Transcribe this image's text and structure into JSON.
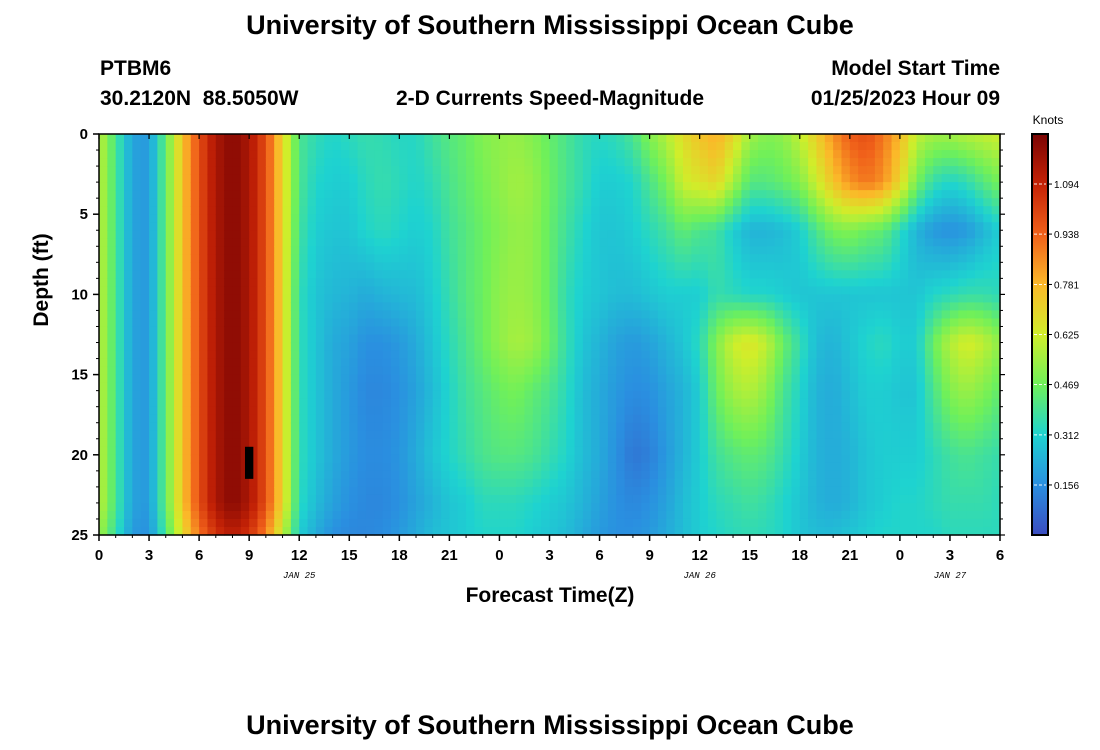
{
  "page": {
    "title": "University of Southern Mississippi Ocean Cube",
    "station_id": "PTBM6",
    "station_coords": "30.2120N  88.5050W",
    "plot_title": "2-D Currents Speed-Magnitude",
    "model_start_label": "Model Start Time",
    "model_start_value": "01/25/2023 Hour 09",
    "footer_title": "University of Southern Mississippi Ocean Cube"
  },
  "chart_data": {
    "type": "heatmap",
    "title": "2-D Currents Speed-Magnitude",
    "xlabel": "Forecast Time(Z)",
    "ylabel": "Depth (ft)",
    "x_ticks": [
      "0",
      "3",
      "6",
      "9",
      "12",
      "15",
      "18",
      "21",
      "0",
      "3",
      "6",
      "9",
      "12",
      "15",
      "18",
      "21",
      "0",
      "3",
      "6"
    ],
    "x_hours": [
      0,
      3,
      6,
      9,
      12,
      15,
      18,
      21,
      24,
      27,
      30,
      33,
      36,
      39,
      42,
      45,
      48,
      51,
      54
    ],
    "date_labels": [
      {
        "label": "JAN 25",
        "hour": 12
      },
      {
        "label": "JAN 26",
        "hour": 36
      },
      {
        "label": "JAN 27",
        "hour": 51
      }
    ],
    "xlim": [
      0,
      54
    ],
    "y_ticks": [
      "0",
      "5",
      "10",
      "15",
      "20",
      "25"
    ],
    "y_values": [
      0,
      5,
      10,
      15,
      20,
      25
    ],
    "ylim": [
      0,
      25
    ],
    "y_inverted": true,
    "colorbar": {
      "unit": "Knots",
      "labels": [
        "0.156",
        "0.312",
        "0.469",
        "0.625",
        "0.781",
        "0.938",
        "1.094"
      ],
      "values": [
        0.156,
        0.312,
        0.469,
        0.625,
        0.781,
        0.938,
        1.094
      ],
      "range": [
        0.0,
        1.25
      ],
      "colormap": [
        "#3b4cc0",
        "#2a8fe0",
        "#1ed3d0",
        "#6ff05a",
        "#d0ee2a",
        "#fbb829",
        "#f0601a",
        "#c42206",
        "#7a0403"
      ]
    },
    "speed_field_knots": {
      "depths_ft": [
        0,
        3,
        6,
        10,
        13,
        16,
        20,
        23,
        25
      ],
      "hours": [
        0,
        1,
        2,
        3,
        4,
        5,
        6,
        7,
        8,
        9,
        10,
        11,
        12,
        13,
        14,
        15,
        16,
        17,
        18,
        19,
        20,
        21,
        22,
        23,
        24,
        25,
        26,
        27,
        28,
        29,
        30,
        31,
        32,
        33,
        34,
        35,
        36,
        37,
        38,
        39,
        40,
        41,
        42,
        43,
        44,
        45,
        46,
        47,
        48,
        49,
        50,
        51,
        52,
        53,
        54
      ],
      "values": [
        [
          0.6,
          0.4,
          0.2,
          0.18,
          0.45,
          0.75,
          0.98,
          1.15,
          1.22,
          1.15,
          0.98,
          0.7,
          0.4,
          0.35,
          0.32,
          0.34,
          0.36,
          0.35,
          0.33,
          0.33,
          0.38,
          0.42,
          0.45,
          0.5,
          0.52,
          0.53,
          0.5,
          0.45,
          0.4,
          0.35,
          0.33,
          0.35,
          0.4,
          0.5,
          0.58,
          0.68,
          0.75,
          0.8,
          0.7,
          0.55,
          0.5,
          0.52,
          0.6,
          0.72,
          0.85,
          0.95,
          0.98,
          0.9,
          0.78,
          0.6,
          0.55,
          0.55,
          0.58,
          0.6,
          0.62
        ],
        [
          0.6,
          0.4,
          0.2,
          0.18,
          0.45,
          0.75,
          0.98,
          1.15,
          1.22,
          1.15,
          0.98,
          0.7,
          0.4,
          0.32,
          0.3,
          0.3,
          0.34,
          0.36,
          0.34,
          0.32,
          0.35,
          0.4,
          0.44,
          0.48,
          0.52,
          0.55,
          0.53,
          0.46,
          0.4,
          0.35,
          0.3,
          0.3,
          0.32,
          0.4,
          0.48,
          0.62,
          0.66,
          0.7,
          0.56,
          0.42,
          0.42,
          0.45,
          0.5,
          0.62,
          0.75,
          0.85,
          0.9,
          0.85,
          0.7,
          0.48,
          0.36,
          0.32,
          0.35,
          0.42,
          0.48
        ],
        [
          0.6,
          0.4,
          0.2,
          0.18,
          0.45,
          0.75,
          0.98,
          1.15,
          1.22,
          1.15,
          0.98,
          0.7,
          0.38,
          0.3,
          0.28,
          0.28,
          0.32,
          0.34,
          0.32,
          0.3,
          0.32,
          0.38,
          0.42,
          0.46,
          0.5,
          0.53,
          0.52,
          0.45,
          0.38,
          0.32,
          0.28,
          0.28,
          0.3,
          0.34,
          0.38,
          0.44,
          0.4,
          0.38,
          0.3,
          0.24,
          0.24,
          0.26,
          0.3,
          0.4,
          0.48,
          0.5,
          0.46,
          0.44,
          0.34,
          0.24,
          0.18,
          0.16,
          0.18,
          0.24,
          0.3
        ],
        [
          0.6,
          0.4,
          0.2,
          0.18,
          0.45,
          0.75,
          0.98,
          1.15,
          1.22,
          1.15,
          0.98,
          0.7,
          0.35,
          0.28,
          0.25,
          0.24,
          0.22,
          0.24,
          0.25,
          0.26,
          0.3,
          0.36,
          0.42,
          0.46,
          0.52,
          0.54,
          0.52,
          0.45,
          0.35,
          0.3,
          0.28,
          0.26,
          0.26,
          0.28,
          0.3,
          0.3,
          0.3,
          0.36,
          0.34,
          0.32,
          0.32,
          0.3,
          0.28,
          0.28,
          0.28,
          0.28,
          0.28,
          0.28,
          0.28,
          0.28,
          0.32,
          0.34,
          0.36,
          0.36,
          0.34
        ],
        [
          0.6,
          0.4,
          0.2,
          0.18,
          0.45,
          0.75,
          0.98,
          1.15,
          1.22,
          1.15,
          0.98,
          0.7,
          0.35,
          0.28,
          0.22,
          0.2,
          0.16,
          0.16,
          0.18,
          0.22,
          0.28,
          0.34,
          0.4,
          0.46,
          0.52,
          0.56,
          0.54,
          0.46,
          0.36,
          0.28,
          0.24,
          0.2,
          0.18,
          0.2,
          0.24,
          0.28,
          0.34,
          0.5,
          0.62,
          0.66,
          0.6,
          0.46,
          0.36,
          0.26,
          0.24,
          0.28,
          0.32,
          0.34,
          0.3,
          0.3,
          0.46,
          0.58,
          0.64,
          0.6,
          0.52
        ],
        [
          0.6,
          0.4,
          0.2,
          0.18,
          0.45,
          0.75,
          0.98,
          1.15,
          1.22,
          1.15,
          0.98,
          0.7,
          0.35,
          0.28,
          0.22,
          0.18,
          0.14,
          0.14,
          0.16,
          0.2,
          0.26,
          0.32,
          0.38,
          0.42,
          0.46,
          0.48,
          0.44,
          0.4,
          0.34,
          0.26,
          0.22,
          0.18,
          0.15,
          0.16,
          0.2,
          0.24,
          0.3,
          0.46,
          0.55,
          0.58,
          0.52,
          0.4,
          0.32,
          0.24,
          0.22,
          0.26,
          0.3,
          0.3,
          0.28,
          0.28,
          0.4,
          0.5,
          0.54,
          0.5,
          0.44
        ],
        [
          0.6,
          0.4,
          0.2,
          0.18,
          0.45,
          0.75,
          0.98,
          1.15,
          1.22,
          1.15,
          0.98,
          0.7,
          0.35,
          0.28,
          0.22,
          0.18,
          0.15,
          0.15,
          0.17,
          0.22,
          0.28,
          0.32,
          0.36,
          0.4,
          0.42,
          0.42,
          0.4,
          0.36,
          0.32,
          0.26,
          0.22,
          0.16,
          0.1,
          0.12,
          0.18,
          0.24,
          0.3,
          0.38,
          0.42,
          0.44,
          0.42,
          0.36,
          0.3,
          0.24,
          0.22,
          0.24,
          0.28,
          0.3,
          0.3,
          0.3,
          0.34,
          0.38,
          0.4,
          0.38,
          0.36
        ],
        [
          0.6,
          0.4,
          0.2,
          0.18,
          0.45,
          0.75,
          0.98,
          1.15,
          1.22,
          1.15,
          0.98,
          0.7,
          0.34,
          0.26,
          0.2,
          0.16,
          0.14,
          0.14,
          0.16,
          0.2,
          0.24,
          0.28,
          0.3,
          0.34,
          0.34,
          0.34,
          0.32,
          0.3,
          0.28,
          0.24,
          0.2,
          0.16,
          0.14,
          0.16,
          0.2,
          0.26,
          0.3,
          0.34,
          0.36,
          0.38,
          0.36,
          0.32,
          0.28,
          0.24,
          0.22,
          0.24,
          0.28,
          0.3,
          0.32,
          0.32,
          0.34,
          0.36,
          0.36,
          0.36,
          0.34
        ],
        [
          0.55,
          0.36,
          0.18,
          0.16,
          0.4,
          0.68,
          0.9,
          1.05,
          1.12,
          1.05,
          0.88,
          0.6,
          0.3,
          0.22,
          0.16,
          0.14,
          0.14,
          0.15,
          0.18,
          0.22,
          0.26,
          0.28,
          0.3,
          0.32,
          0.32,
          0.32,
          0.3,
          0.28,
          0.26,
          0.22,
          0.18,
          0.16,
          0.16,
          0.18,
          0.22,
          0.26,
          0.3,
          0.32,
          0.34,
          0.35,
          0.34,
          0.32,
          0.28,
          0.26,
          0.26,
          0.28,
          0.3,
          0.32,
          0.32,
          0.32,
          0.32,
          0.34,
          0.34,
          0.34,
          0.34
        ]
      ],
      "missing_cell": {
        "hour": 9,
        "depth_from": 19.5,
        "depth_to": 21.5
      }
    }
  }
}
